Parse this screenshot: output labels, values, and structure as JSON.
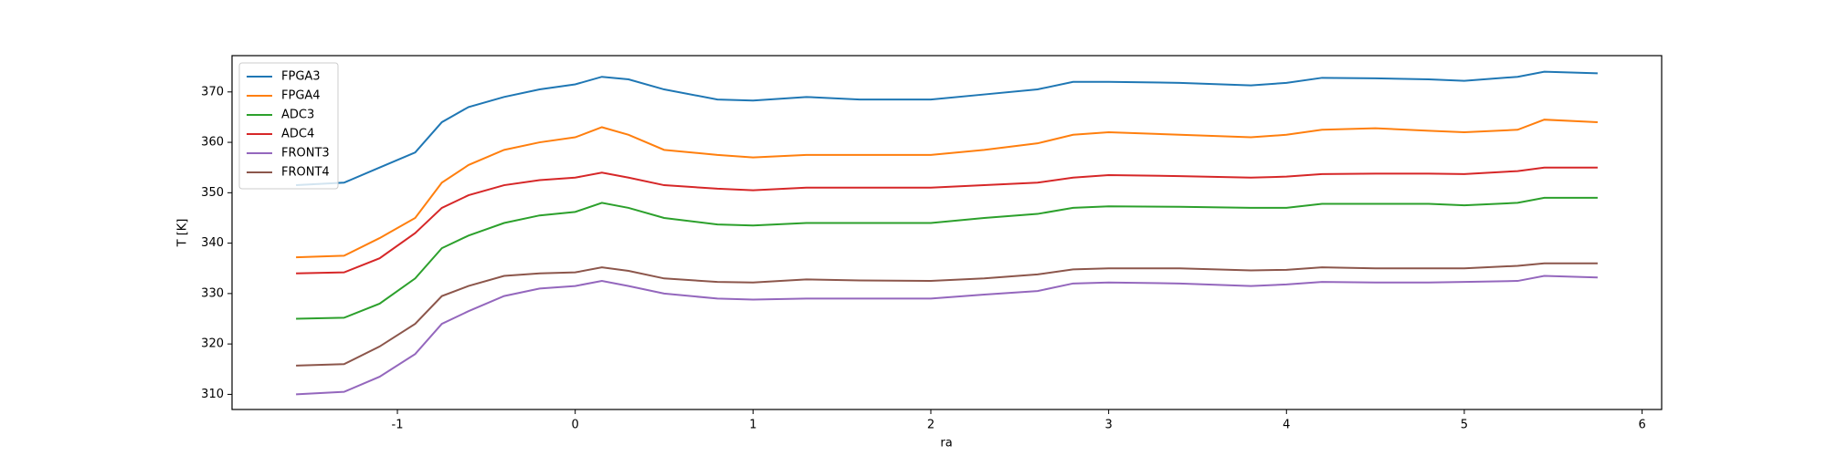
{
  "chart_data": {
    "type": "line",
    "x_label": "ra",
    "y_label": "T [K]",
    "x": [
      -1.57,
      -1.3,
      -1.1,
      -0.9,
      -0.75,
      -0.6,
      -0.4,
      -0.2,
      0,
      0.15,
      0.3,
      0.5,
      0.8,
      1.0,
      1.3,
      1.6,
      2.0,
      2.3,
      2.6,
      2.8,
      3.0,
      3.4,
      3.8,
      4.0,
      4.2,
      4.5,
      4.8,
      5.0,
      5.3,
      5.45,
      5.75
    ],
    "series": [
      {
        "name": "FPGA3",
        "color": "#1f77b4",
        "values": [
          351.5,
          352,
          355,
          358,
          364,
          367,
          369,
          370.5,
          371.5,
          373,
          372.5,
          370.5,
          368.5,
          368.3,
          369,
          368.5,
          368.5,
          369.5,
          370.5,
          372,
          372,
          371.8,
          371.3,
          371.8,
          372.8,
          372.7,
          372.5,
          372.2,
          373,
          374,
          373.7
        ]
      },
      {
        "name": "FPGA4",
        "color": "#ff7f0e",
        "values": [
          337.2,
          337.5,
          341,
          345,
          352,
          355.5,
          358.5,
          360,
          361,
          363,
          361.5,
          358.5,
          357.5,
          357,
          357.5,
          357.5,
          357.5,
          358.5,
          359.8,
          361.5,
          362,
          361.5,
          361,
          361.5,
          362.5,
          362.8,
          362.3,
          362,
          362.5,
          364.5,
          364
        ]
      },
      {
        "name": "ADC3",
        "color": "#2ca02c",
        "values": [
          325,
          325.2,
          328,
          333,
          339,
          341.5,
          344,
          345.5,
          346.2,
          348,
          347,
          345,
          343.7,
          343.5,
          344,
          344,
          344,
          345,
          345.8,
          347,
          347.3,
          347.2,
          347,
          347,
          347.8,
          347.8,
          347.8,
          347.5,
          348,
          349,
          349
        ]
      },
      {
        "name": "ADC4",
        "color": "#d62728",
        "values": [
          334,
          334.2,
          337,
          342,
          347,
          349.5,
          351.5,
          352.5,
          353,
          354,
          353,
          351.5,
          350.8,
          350.5,
          351,
          351,
          351,
          351.5,
          352,
          353,
          353.5,
          353.3,
          353,
          353.2,
          353.7,
          353.8,
          353.8,
          353.7,
          354.3,
          355,
          355
        ]
      },
      {
        "name": "FRONT3",
        "color": "#9467bd",
        "values": [
          310,
          310.5,
          313.5,
          318,
          324,
          326.5,
          329.5,
          331,
          331.5,
          332.5,
          331.5,
          330,
          329,
          328.8,
          329,
          329,
          329,
          329.8,
          330.5,
          332,
          332.2,
          332,
          331.5,
          331.8,
          332.3,
          332.2,
          332.2,
          332.3,
          332.5,
          333.5,
          333.2
        ]
      },
      {
        "name": "FRONT4",
        "color": "#8c564b",
        "values": [
          315.7,
          316,
          319.5,
          324,
          329.5,
          331.5,
          333.5,
          334,
          334.2,
          335.2,
          334.5,
          333,
          332.3,
          332.2,
          332.8,
          332.6,
          332.5,
          333,
          333.8,
          334.8,
          335,
          335,
          334.6,
          334.7,
          335.2,
          335,
          335,
          335,
          335.5,
          336,
          336
        ]
      }
    ],
    "xlim": [
      -1.93,
      6.11
    ],
    "xticks": [
      -1,
      0,
      1,
      2,
      3,
      4,
      5,
      6
    ],
    "ylim": [
      307,
      377.2
    ],
    "yticks": [
      310,
      320,
      330,
      340,
      350,
      360,
      370
    ],
    "legend": "upper-left",
    "grid": false
  }
}
